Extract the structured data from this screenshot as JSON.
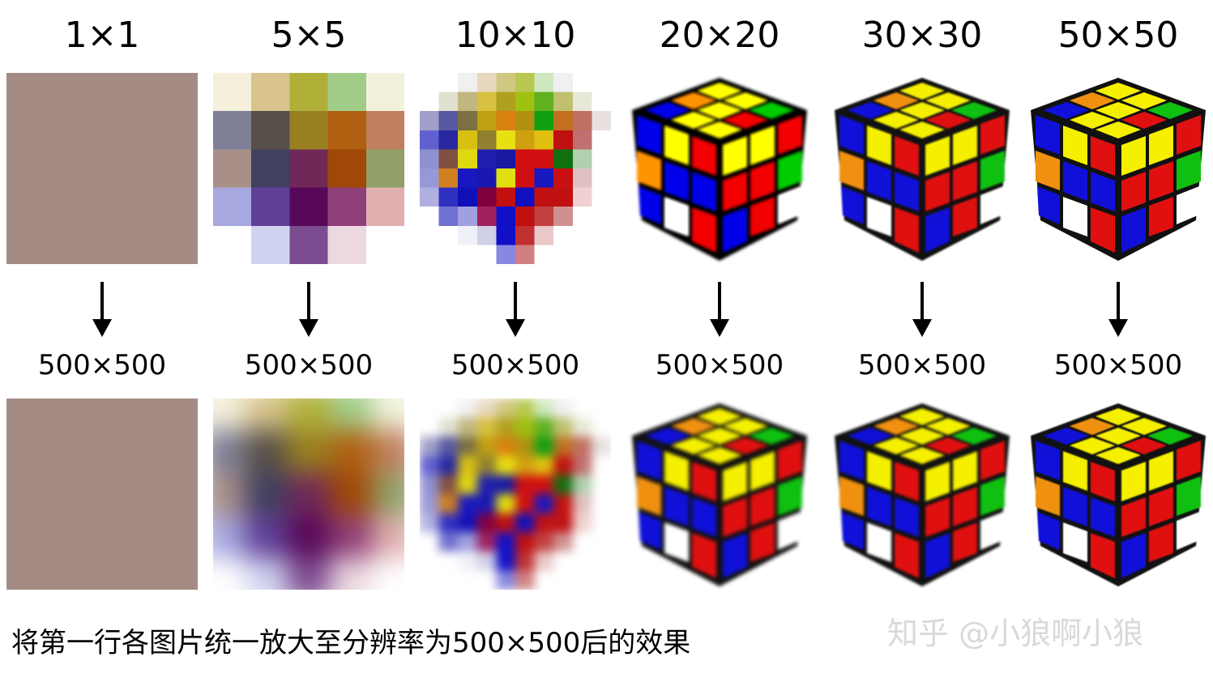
{
  "columns": [
    {
      "label": "1×1",
      "upscale_label": "500×500"
    },
    {
      "label": "5×5",
      "upscale_label": "500×500"
    },
    {
      "label": "10×10",
      "upscale_label": "500×500"
    },
    {
      "label": "20×20",
      "upscale_label": "500×500"
    },
    {
      "label": "30×30",
      "upscale_label": "500×500"
    },
    {
      "label": "50×50",
      "upscale_label": "500×500"
    }
  ],
  "caption": "将第一行各图片统一放大至分辨率为500×500后的效果",
  "watermark": "知乎 @小狼啊小狼",
  "colors": {
    "avg": "#a48c84",
    "yellow": "#f5f000",
    "blue": "#1010d8",
    "red": "#e01010",
    "green": "#10c010",
    "orange": "#f09010",
    "white": "#ffffff",
    "black": "#111111"
  }
}
